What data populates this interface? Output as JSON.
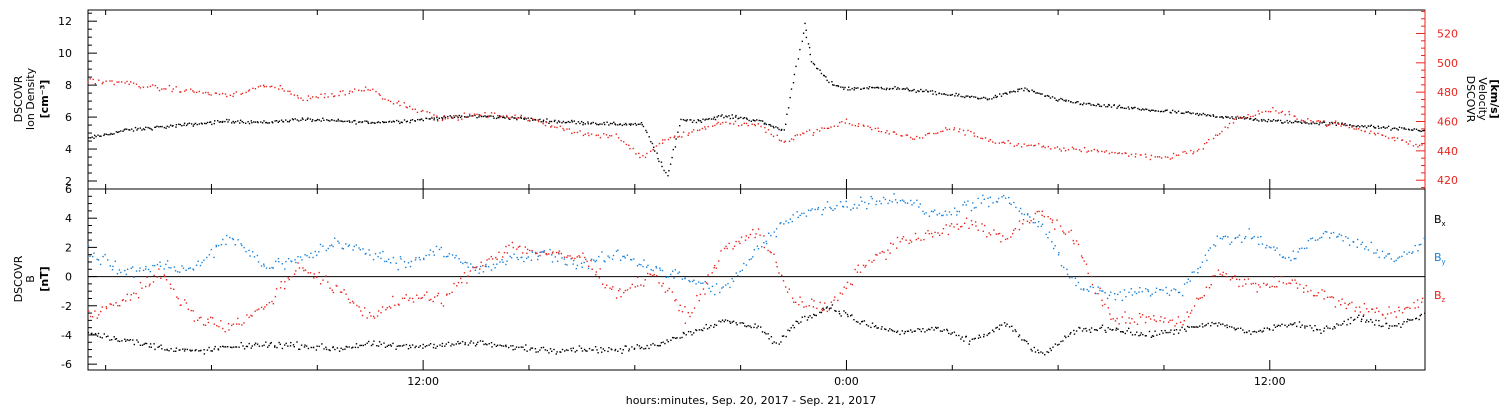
{
  "xlabel": "hours:minutes, Sep. 20, 2017 - Sep. 21, 2017",
  "x_tick_labels": [
    "12:00",
    "0:00",
    "12:00"
  ],
  "colors": {
    "black": "#000000",
    "red": "#e8251f",
    "blue": "#1a82d8"
  },
  "chart_data": [
    {
      "type": "scatter",
      "panel": "top",
      "x_unit": "hours since 2017-09-20 00:00",
      "xlim": [
        2.5,
        40.4
      ],
      "left_axis": {
        "line1": "DSCOVR",
        "line2": "Ion Density",
        "unit": "[cm⁻³]",
        "ylim": [
          1.5,
          12.7
        ],
        "ticks": [
          2,
          4,
          6,
          8,
          10,
          12
        ]
      },
      "right_axis": {
        "line1": "DSCOVR",
        "line2": "Velocity",
        "unit": "[km/s]",
        "ylim": [
          414,
          536
        ],
        "ticks": [
          420,
          440,
          460,
          480,
          500,
          520
        ]
      },
      "series": [
        {
          "color": "black",
          "axis": "left",
          "points": [
            [
              2.5,
              4.7
            ],
            [
              3.5,
              5.2
            ],
            [
              4.5,
              5.4
            ],
            [
              5.5,
              5.6
            ],
            [
              6.5,
              5.8
            ],
            [
              7.5,
              5.7
            ],
            [
              8.5,
              5.9
            ],
            [
              9.5,
              5.8
            ],
            [
              10.5,
              5.7
            ],
            [
              11.5,
              5.8
            ],
            [
              12.5,
              6.0
            ],
            [
              13.5,
              6.1
            ],
            [
              14.5,
              6.0
            ],
            [
              15.5,
              5.8
            ],
            [
              16.5,
              5.7
            ],
            [
              17.5,
              5.6
            ],
            [
              18.2,
              5.6
            ],
            [
              18.9,
              2.3
            ],
            [
              19.3,
              5.9
            ],
            [
              19.8,
              5.8
            ],
            [
              20.5,
              6.1
            ],
            [
              21.0,
              6.0
            ],
            [
              21.5,
              5.8
            ],
            [
              22.2,
              5.2
            ],
            [
              22.8,
              11.8
            ],
            [
              23.0,
              9.5
            ],
            [
              23.5,
              8.2
            ],
            [
              24.0,
              7.8
            ],
            [
              25.0,
              7.9
            ],
            [
              26.0,
              7.7
            ],
            [
              27.0,
              7.4
            ],
            [
              28.0,
              7.2
            ],
            [
              29.0,
              7.8
            ],
            [
              30.0,
              7.1
            ],
            [
              31.0,
              6.8
            ],
            [
              32.0,
              6.6
            ],
            [
              33.0,
              6.4
            ],
            [
              34.0,
              6.2
            ],
            [
              35.0,
              6.0
            ],
            [
              36.0,
              5.8
            ],
            [
              37.0,
              5.7
            ],
            [
              38.0,
              5.6
            ],
            [
              39.0,
              5.4
            ],
            [
              40.4,
              5.2
            ]
          ]
        },
        {
          "color": "red",
          "axis": "right",
          "points": [
            [
              2.5,
              488
            ],
            [
              3.5,
              487
            ],
            [
              4.5,
              483
            ],
            [
              5.5,
              481
            ],
            [
              6.5,
              478
            ],
            [
              7.5,
              485
            ],
            [
              8.0,
              482
            ],
            [
              8.6,
              476
            ],
            [
              9.5,
              479
            ],
            [
              10.5,
              483
            ],
            [
              11.0,
              475
            ],
            [
              11.7,
              470
            ],
            [
              12.5,
              462
            ],
            [
              13.5,
              465
            ],
            [
              14.5,
              464
            ],
            [
              15.5,
              459
            ],
            [
              16.5,
              452
            ],
            [
              17.5,
              450
            ],
            [
              18.2,
              436
            ],
            [
              18.8,
              448
            ],
            [
              19.4,
              452
            ],
            [
              20.5,
              460
            ],
            [
              21.5,
              458
            ],
            [
              22.2,
              447
            ],
            [
              22.8,
              452
            ],
            [
              23.5,
              456
            ],
            [
              24.0,
              460
            ],
            [
              25.0,
              454
            ],
            [
              26.0,
              449
            ],
            [
              27.0,
              456
            ],
            [
              28.0,
              448
            ],
            [
              29.0,
              444
            ],
            [
              30.0,
              442
            ],
            [
              31.0,
              441
            ],
            [
              32.0,
              438
            ],
            [
              33.0,
              436
            ],
            [
              34.0,
              441
            ],
            [
              35.0,
              462
            ],
            [
              36.0,
              468
            ],
            [
              37.0,
              462
            ],
            [
              38.0,
              458
            ],
            [
              39.0,
              452
            ],
            [
              40.4,
              443
            ]
          ]
        }
      ]
    },
    {
      "type": "scatter",
      "panel": "bottom",
      "x_unit": "hours since 2017-09-20 00:00",
      "xlim": [
        2.5,
        40.4
      ],
      "left_axis": {
        "line1": "DSCOVR",
        "line2": "B",
        "unit": "[nT]",
        "ylim": [
          -6.4,
          6.0
        ],
        "ticks": [
          -6,
          -4,
          -2,
          0,
          2,
          4,
          6
        ]
      },
      "zero_line": 0,
      "legend": [
        "Bx",
        "By",
        "Bz"
      ],
      "series": [
        {
          "name": "Bx",
          "color": "black",
          "points": [
            [
              2.5,
              -3.8
            ],
            [
              3.5,
              -4.3
            ],
            [
              4.5,
              -4.8
            ],
            [
              5.5,
              -5.1
            ],
            [
              6.5,
              -4.8
            ],
            [
              7.5,
              -4.6
            ],
            [
              8.5,
              -4.7
            ],
            [
              9.5,
              -4.9
            ],
            [
              10.5,
              -4.6
            ],
            [
              11.5,
              -4.8
            ],
            [
              12.5,
              -4.6
            ],
            [
              13.5,
              -4.5
            ],
            [
              14.5,
              -4.8
            ],
            [
              15.5,
              -5.0
            ],
            [
              16.5,
              -4.9
            ],
            [
              17.5,
              -5.0
            ],
            [
              18.5,
              -4.7
            ],
            [
              19.5,
              -3.8
            ],
            [
              20.5,
              -3.0
            ],
            [
              21.5,
              -3.4
            ],
            [
              22.0,
              -4.6
            ],
            [
              22.5,
              -3.2
            ],
            [
              23.5,
              -2.0
            ],
            [
              24.5,
              -3.2
            ],
            [
              25.5,
              -3.8
            ],
            [
              26.5,
              -3.5
            ],
            [
              27.5,
              -4.4
            ],
            [
              28.5,
              -3.2
            ],
            [
              29.5,
              -5.4
            ],
            [
              30.5,
              -3.6
            ],
            [
              31.5,
              -3.5
            ],
            [
              32.5,
              -4.0
            ],
            [
              33.5,
              -3.6
            ],
            [
              34.5,
              -3.2
            ],
            [
              35.5,
              -3.8
            ],
            [
              36.5,
              -3.2
            ],
            [
              37.5,
              -3.6
            ],
            [
              38.5,
              -2.8
            ],
            [
              39.5,
              -3.4
            ],
            [
              40.4,
              -2.5
            ]
          ]
        },
        {
          "name": "By",
          "color": "blue",
          "points": [
            [
              2.5,
              1.8
            ],
            [
              3.5,
              0.3
            ],
            [
              4.5,
              0.8
            ],
            [
              5.5,
              0.5
            ],
            [
              6.5,
              2.8
            ],
            [
              7.5,
              0.8
            ],
            [
              8.5,
              1.2
            ],
            [
              9.5,
              2.4
            ],
            [
              10.5,
              1.6
            ],
            [
              11.5,
              0.9
            ],
            [
              12.5,
              2.0
            ],
            [
              13.5,
              0.4
            ],
            [
              14.5,
              1.2
            ],
            [
              15.5,
              1.6
            ],
            [
              16.5,
              0.8
            ],
            [
              17.5,
              1.6
            ],
            [
              18.5,
              0.7
            ],
            [
              19.5,
              -0.2
            ],
            [
              20.5,
              -1.0
            ],
            [
              21.5,
              2.0
            ],
            [
              22.5,
              4.3
            ],
            [
              23.5,
              4.8
            ],
            [
              24.5,
              5.2
            ],
            [
              25.5,
              5.4
            ],
            [
              26.5,
              4.2
            ],
            [
              27.5,
              5.0
            ],
            [
              28.5,
              5.3
            ],
            [
              29.5,
              3.5
            ],
            [
              30.5,
              -0.5
            ],
            [
              31.5,
              -1.3
            ],
            [
              32.5,
              -1.0
            ],
            [
              33.5,
              -0.8
            ],
            [
              34.5,
              2.5
            ],
            [
              35.5,
              2.8
            ],
            [
              36.5,
              1.2
            ],
            [
              37.5,
              3.0
            ],
            [
              38.5,
              2.3
            ],
            [
              39.5,
              1.2
            ],
            [
              40.4,
              2.4
            ]
          ]
        },
        {
          "name": "Bz",
          "color": "red",
          "points": [
            [
              2.5,
              -2.6
            ],
            [
              3.5,
              -1.6
            ],
            [
              4.5,
              0.2
            ],
            [
              5.5,
              -2.6
            ],
            [
              6.5,
              -3.5
            ],
            [
              7.5,
              -2.0
            ],
            [
              8.5,
              0.8
            ],
            [
              9.5,
              -0.8
            ],
            [
              10.5,
              -2.7
            ],
            [
              11.5,
              -1.4
            ],
            [
              12.5,
              -1.6
            ],
            [
              13.5,
              0.8
            ],
            [
              14.5,
              2.1
            ],
            [
              15.5,
              1.6
            ],
            [
              16.5,
              1.4
            ],
            [
              17.5,
              -1.2
            ],
            [
              18.5,
              0.3
            ],
            [
              19.5,
              -2.8
            ],
            [
              20.5,
              1.8
            ],
            [
              21.5,
              3.2
            ],
            [
              22.5,
              -1.6
            ],
            [
              23.5,
              -2.2
            ],
            [
              24.5,
              1.0
            ],
            [
              25.5,
              2.4
            ],
            [
              26.5,
              3.0
            ],
            [
              27.5,
              3.8
            ],
            [
              28.5,
              2.6
            ],
            [
              29.5,
              4.6
            ],
            [
              30.5,
              2.3
            ],
            [
              31.5,
              -3.0
            ],
            [
              32.5,
              -2.8
            ],
            [
              33.5,
              -3.1
            ],
            [
              34.5,
              0.3
            ],
            [
              35.5,
              -0.6
            ],
            [
              36.5,
              -0.3
            ],
            [
              37.5,
              -1.3
            ],
            [
              38.5,
              -2.2
            ],
            [
              39.5,
              -2.5
            ],
            [
              40.4,
              -1.5
            ]
          ]
        }
      ]
    }
  ]
}
